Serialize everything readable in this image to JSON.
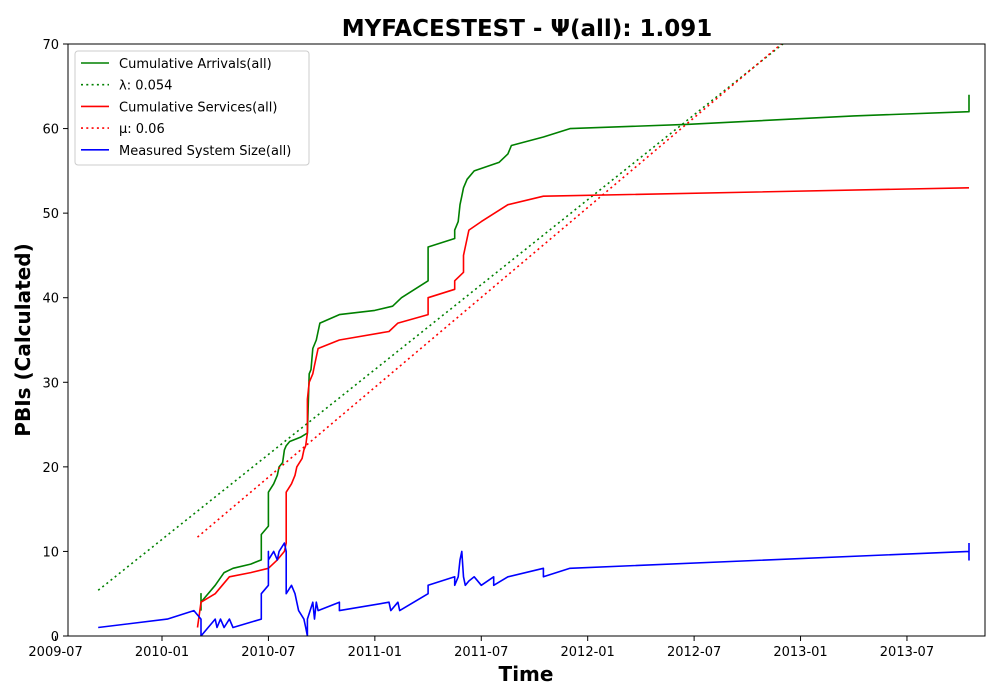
{
  "chart_data": {
    "type": "line",
    "title": "MYFACESTEST -  Ψ(all): 1.091",
    "xlabel": "Time",
    "ylabel": "PBIs (Calculated)",
    "x_unit": "months since 2009-01",
    "xlim": [
      6.7,
      58.4
    ],
    "ylim": [
      0,
      70
    ],
    "grid": false,
    "legend_position": "top-left",
    "x_ticks": [
      {
        "value": 6,
        "label": "2009-07"
      },
      {
        "value": 12,
        "label": "2010-01"
      },
      {
        "value": 18,
        "label": "2010-07"
      },
      {
        "value": 24,
        "label": "2011-01"
      },
      {
        "value": 30,
        "label": "2011-07"
      },
      {
        "value": 36,
        "label": "2012-01"
      },
      {
        "value": 42,
        "label": "2012-07"
      },
      {
        "value": 48,
        "label": "2013-01"
      },
      {
        "value": 54,
        "label": "2013-07"
      }
    ],
    "y_ticks": [
      0,
      10,
      20,
      30,
      40,
      50,
      60,
      70
    ],
    "series": [
      {
        "name": "Cumulative Arrivals(all)",
        "color": "#008000",
        "style": "solid",
        "points": [
          [
            14.2,
            3
          ],
          [
            14.2,
            5
          ],
          [
            14.2,
            4
          ],
          [
            14.4,
            4.5
          ],
          [
            15,
            6
          ],
          [
            15.5,
            7.5
          ],
          [
            16,
            8
          ],
          [
            17,
            8.5
          ],
          [
            17.6,
            9
          ],
          [
            17.6,
            12
          ],
          [
            18,
            13
          ],
          [
            18,
            17
          ],
          [
            18.3,
            18
          ],
          [
            18.5,
            19
          ],
          [
            18.6,
            20
          ],
          [
            18.8,
            20.5
          ],
          [
            18.9,
            22
          ],
          [
            19,
            22.5
          ],
          [
            19.2,
            23
          ],
          [
            19.8,
            23.5
          ],
          [
            20.2,
            24
          ],
          [
            20.3,
            31
          ],
          [
            20.4,
            31.5
          ],
          [
            20.5,
            34
          ],
          [
            20.7,
            35
          ],
          [
            20.8,
            36
          ],
          [
            20.9,
            37
          ],
          [
            22,
            38
          ],
          [
            24,
            38.5
          ],
          [
            25,
            39
          ],
          [
            25.5,
            40
          ],
          [
            27,
            42
          ],
          [
            27,
            46
          ],
          [
            28.5,
            47
          ],
          [
            28.5,
            48
          ],
          [
            28.7,
            49
          ],
          [
            28.8,
            51
          ],
          [
            28.9,
            52
          ],
          [
            29,
            53
          ],
          [
            29.2,
            54
          ],
          [
            29.6,
            55
          ],
          [
            31,
            56
          ],
          [
            31.5,
            57
          ],
          [
            31.7,
            58
          ],
          [
            33.5,
            59
          ],
          [
            35,
            60
          ],
          [
            41.7,
            60.5
          ],
          [
            51,
            61.5
          ],
          [
            57.5,
            62
          ],
          [
            57.5,
            64
          ]
        ]
      },
      {
        "name": "λ: 0.054",
        "color": "#008000",
        "style": "dotted",
        "points": [
          [
            8.4,
            5.4
          ],
          [
            47.3,
            70.5
          ]
        ]
      },
      {
        "name": "Cumulative Services(all)",
        "color": "#ff0000",
        "style": "solid",
        "points": [
          [
            14,
            1
          ],
          [
            14.2,
            4
          ],
          [
            15,
            5
          ],
          [
            15.8,
            7
          ],
          [
            17,
            7.5
          ],
          [
            18,
            8
          ],
          [
            18.5,
            9
          ],
          [
            18.9,
            10
          ],
          [
            19,
            11
          ],
          [
            19,
            17
          ],
          [
            19.3,
            18
          ],
          [
            19.5,
            19
          ],
          [
            19.6,
            20
          ],
          [
            19.9,
            21
          ],
          [
            20,
            22
          ],
          [
            20.1,
            22.5
          ],
          [
            20.2,
            24
          ],
          [
            20.2,
            28
          ],
          [
            20.3,
            30
          ],
          [
            20.5,
            31
          ],
          [
            20.6,
            32
          ],
          [
            20.8,
            34
          ],
          [
            22,
            35
          ],
          [
            24.8,
            36
          ],
          [
            25.3,
            37
          ],
          [
            27,
            38
          ],
          [
            27,
            40
          ],
          [
            28.5,
            41
          ],
          [
            28.5,
            42
          ],
          [
            29,
            43
          ],
          [
            29,
            45
          ],
          [
            29.2,
            47
          ],
          [
            29.3,
            48
          ],
          [
            30,
            49
          ],
          [
            31.5,
            51
          ],
          [
            33.5,
            52
          ],
          [
            57.5,
            53
          ]
        ]
      },
      {
        "name": "μ: 0.06",
        "color": "#ff0000",
        "style": "dotted",
        "points": [
          [
            14,
            11.7
          ],
          [
            47.2,
            70.5
          ]
        ]
      },
      {
        "name": "Measured System Size(all)",
        "color": "#0000ff",
        "style": "solid",
        "points": [
          [
            8.4,
            1
          ],
          [
            12.3,
            2
          ],
          [
            13.8,
            3
          ],
          [
            14.2,
            2
          ],
          [
            14.2,
            0
          ],
          [
            15,
            2
          ],
          [
            15.1,
            1
          ],
          [
            15.3,
            2
          ],
          [
            15.5,
            1
          ],
          [
            15.8,
            2
          ],
          [
            16,
            1
          ],
          [
            17.6,
            2
          ],
          [
            17.6,
            5
          ],
          [
            18,
            6
          ],
          [
            18,
            10
          ],
          [
            18,
            9
          ],
          [
            18.3,
            10
          ],
          [
            18.5,
            9
          ],
          [
            18.6,
            10
          ],
          [
            18.9,
            11
          ],
          [
            19,
            10
          ],
          [
            19,
            5
          ],
          [
            19.3,
            6
          ],
          [
            19.5,
            5
          ],
          [
            19.6,
            4
          ],
          [
            19.7,
            3
          ],
          [
            20,
            2
          ],
          [
            20.1,
            1
          ],
          [
            20.2,
            0
          ],
          [
            20.2,
            2
          ],
          [
            20.5,
            4
          ],
          [
            20.6,
            2
          ],
          [
            20.7,
            4
          ],
          [
            20.8,
            3
          ],
          [
            22,
            4
          ],
          [
            22,
            3
          ],
          [
            24.8,
            4
          ],
          [
            24.9,
            3
          ],
          [
            25.3,
            4
          ],
          [
            25.4,
            3
          ],
          [
            27,
            5
          ],
          [
            27,
            6
          ],
          [
            28.5,
            7
          ],
          [
            28.5,
            6
          ],
          [
            28.7,
            7
          ],
          [
            28.8,
            9
          ],
          [
            28.9,
            10
          ],
          [
            29,
            7
          ],
          [
            29.1,
            6
          ],
          [
            29.3,
            6.5
          ],
          [
            29.6,
            7
          ],
          [
            30,
            6
          ],
          [
            30.7,
            7
          ],
          [
            30.7,
            6
          ],
          [
            31.5,
            7
          ],
          [
            33.5,
            8
          ],
          [
            33.5,
            7
          ],
          [
            35,
            8
          ],
          [
            57.5,
            10
          ],
          [
            57.5,
            9
          ],
          [
            57.5,
            11
          ]
        ]
      }
    ]
  }
}
